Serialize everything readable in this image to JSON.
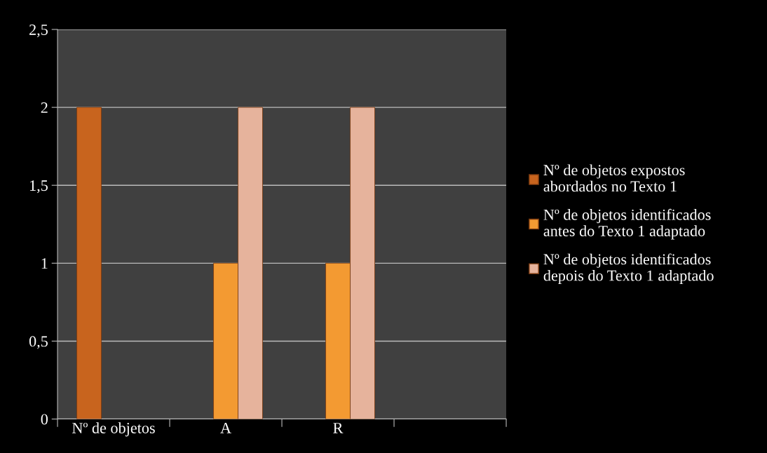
{
  "chart_data": {
    "type": "bar",
    "categories": [
      "Nº de objetos",
      "A",
      "R",
      null
    ],
    "series": [
      {
        "name": "Nº de objetos expostos abordados no Texto 1",
        "color": "#c8641e",
        "values": [
          2,
          null,
          null,
          null
        ]
      },
      {
        "name": "Nº de objetos identificados antes do Texto 1 adaptado",
        "color": "#f39a32",
        "values": [
          null,
          1,
          1,
          null
        ]
      },
      {
        "name": "Nº de objetos identificados depois do Texto 1 adaptado",
        "color": "#e6b39c",
        "values": [
          null,
          2,
          2,
          null
        ]
      }
    ],
    "ylim": [
      0,
      2.5
    ],
    "yticks": [
      0,
      {
        "value": 0.5,
        "label": "0,5"
      },
      1,
      {
        "value": 1.5,
        "label": "1,5"
      },
      2,
      {
        "value": 2.5,
        "label": "2,5"
      }
    ],
    "grid": "y",
    "legend": "right"
  }
}
